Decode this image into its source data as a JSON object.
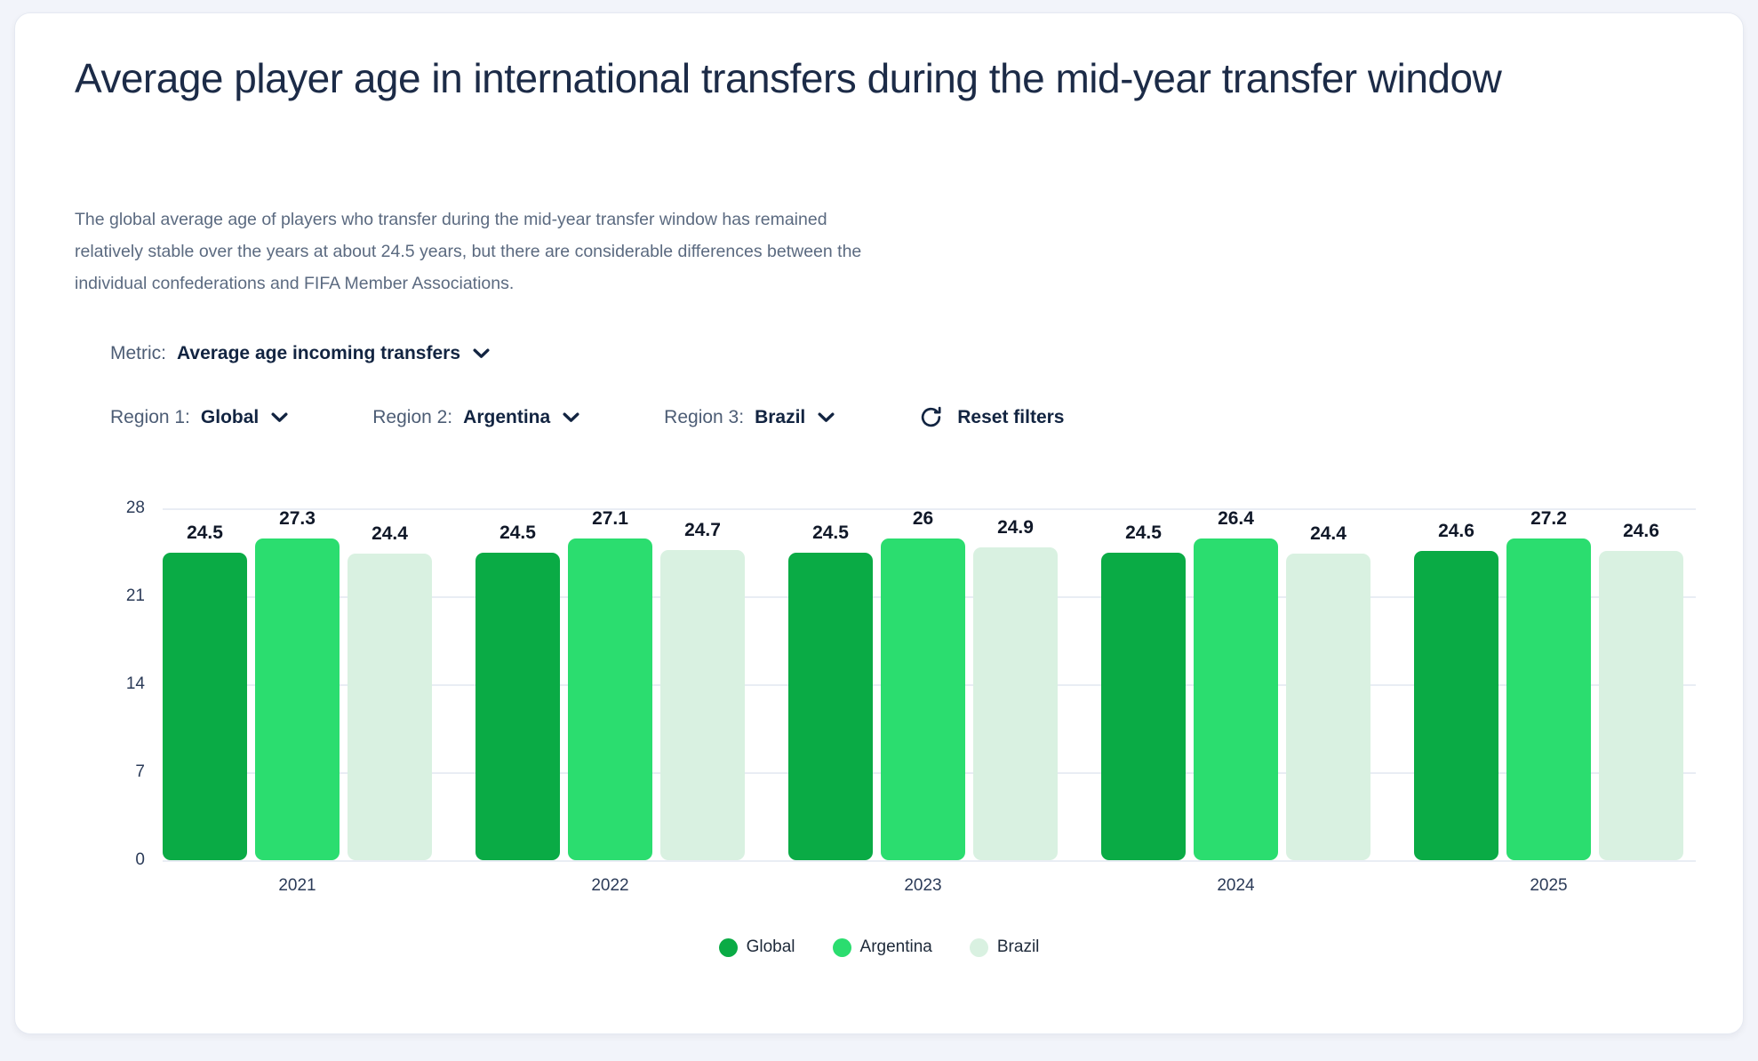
{
  "header": {
    "title": "Average player age in international transfers during the mid-year transfer window",
    "subtitle": "The global average age of players who transfer during the mid-year transfer window has remained relatively stable over the years at about 24.5 years, but there are considerable differences between the individual confederations and FIFA Member Associations."
  },
  "filters": {
    "metric": {
      "label": "Metric:",
      "value": "Average age incoming transfers"
    },
    "regions": [
      {
        "label": "Region 1:",
        "value": "Global"
      },
      {
        "label": "Region 2:",
        "value": "Argentina"
      },
      {
        "label": "Region 3:",
        "value": "Brazil"
      }
    ],
    "reset_label": "Reset filters",
    "dropdown_icon": "chevron-down-icon",
    "reset_icon": "refresh-icon"
  },
  "chart_data": {
    "type": "bar",
    "title": "",
    "categories": [
      "2021",
      "2022",
      "2023",
      "2024",
      "2025"
    ],
    "series": [
      {
        "name": "Global",
        "color": "#0aab45",
        "values": [
          24.5,
          24.5,
          24.5,
          24.5,
          24.6
        ]
      },
      {
        "name": "Argentina",
        "color": "#2bdd6f",
        "values": [
          27.3,
          27.1,
          26,
          26.4,
          27.2
        ]
      },
      {
        "name": "Brazil",
        "color": "#d9f1e1",
        "values": [
          24.4,
          24.7,
          24.9,
          24.4,
          24.6
        ]
      }
    ],
    "xlabel": "",
    "ylabel": "",
    "ylim": [
      0,
      28
    ],
    "yticks": [
      0,
      7,
      14,
      21,
      28
    ],
    "grid": true,
    "legend_position": "bottom",
    "value_labels": true
  },
  "theme": {
    "page_background": "#f2f4fa",
    "card_background": "#ffffff",
    "title_color": "#1c2b47",
    "subtitle_color": "#5b6a80",
    "accent_navy": "#122441",
    "axis_text_color": "#2b3b58",
    "gridline_color": "#e9edf4"
  }
}
